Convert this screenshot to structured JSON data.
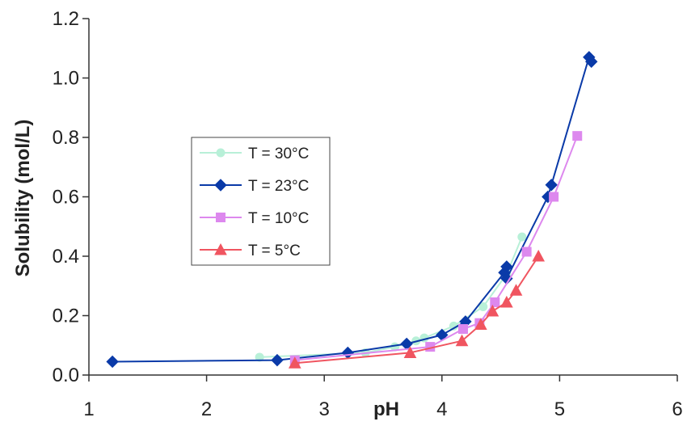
{
  "chart_data": {
    "type": "line",
    "title": "",
    "xlabel": "pH",
    "ylabel": "Solubility (mol/L)",
    "xlim": [
      1,
      6
    ],
    "ylim": [
      0,
      1.2
    ],
    "x_ticks": [
      1,
      2,
      3,
      4,
      5,
      6
    ],
    "x_tick_labels": [
      "1",
      "2",
      "3",
      "4",
      "5",
      "6"
    ],
    "y_ticks": [
      0,
      0.2,
      0.4,
      0.6,
      0.8,
      1.0,
      1.2
    ],
    "y_tick_labels": [
      "0.0",
      "0.2",
      "0.4",
      "0.6",
      "0.8",
      "1.0",
      "1.2"
    ],
    "grid": false,
    "legend_position": "center-left",
    "series": [
      {
        "name": "T = 30°C",
        "color": "#b8f0d8",
        "marker": "circle",
        "points": [
          [
            2.45,
            0.06
          ],
          [
            3.35,
            0.075
          ],
          [
            3.6,
            0.095
          ],
          [
            3.78,
            0.115
          ],
          [
            3.85,
            0.125
          ],
          [
            4.1,
            0.165
          ],
          [
            4.35,
            0.23
          ],
          [
            4.55,
            0.34
          ],
          [
            4.68,
            0.465
          ]
        ]
      },
      {
        "name": "T = 23°C",
        "color": "#0a3aa8",
        "marker": "diamond",
        "points": [
          [
            1.2,
            0.045
          ],
          [
            2.6,
            0.05
          ],
          [
            3.2,
            0.075
          ],
          [
            3.7,
            0.105
          ],
          [
            4.0,
            0.135
          ],
          [
            4.2,
            0.18
          ],
          [
            4.53,
            0.345
          ],
          [
            4.55,
            0.365
          ],
          [
            4.55,
            0.325
          ],
          [
            4.9,
            0.6
          ],
          [
            4.93,
            0.64
          ],
          [
            5.25,
            1.07
          ],
          [
            5.27,
            1.055
          ]
        ]
      },
      {
        "name": "T = 10°C",
        "color": "#dd88ee",
        "marker": "square",
        "points": [
          [
            2.75,
            0.05
          ],
          [
            3.9,
            0.095
          ],
          [
            4.18,
            0.155
          ],
          [
            4.32,
            0.175
          ],
          [
            4.45,
            0.245
          ],
          [
            4.72,
            0.415
          ],
          [
            4.95,
            0.6
          ],
          [
            5.15,
            0.805
          ]
        ]
      },
      {
        "name": "T = 5°C",
        "color": "#f05560",
        "marker": "triangle",
        "points": [
          [
            2.75,
            0.04
          ],
          [
            3.73,
            0.075
          ],
          [
            4.17,
            0.115
          ],
          [
            4.33,
            0.17
          ],
          [
            4.43,
            0.215
          ],
          [
            4.55,
            0.245
          ],
          [
            4.63,
            0.285
          ],
          [
            4.82,
            0.4
          ]
        ]
      }
    ]
  }
}
